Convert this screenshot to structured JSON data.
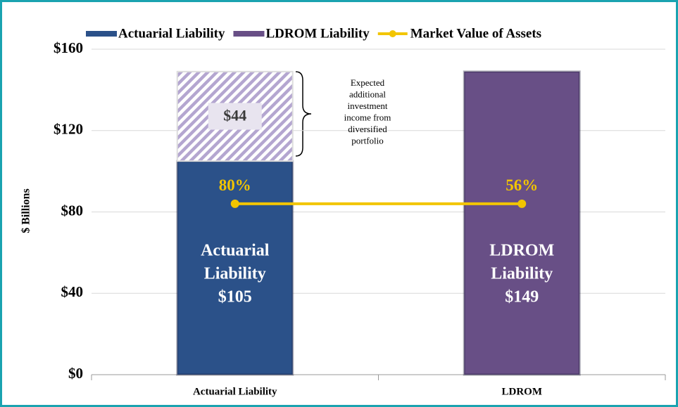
{
  "chart_data": {
    "type": "bar",
    "categories": [
      "Actuarial Liability",
      "LDROM"
    ],
    "y_label": "$ Billions",
    "ylim": [
      0,
      160
    ],
    "yticks": [
      {
        "value": 0,
        "label": "$0"
      },
      {
        "value": 40,
        "label": "$40"
      },
      {
        "value": 80,
        "label": "$80"
      },
      {
        "value": 120,
        "label": "$120"
      },
      {
        "value": 160,
        "label": "$160"
      }
    ],
    "grid": true,
    "legend": "top",
    "series": [
      {
        "name": "Actuarial Liability",
        "color": "#2b5189",
        "values": [
          105,
          null
        ]
      },
      {
        "name": "LDROM Liability",
        "color": "#684f86",
        "values": [
          null,
          149
        ]
      },
      {
        "name": "Market Value of Assets",
        "color": "#f2c500",
        "type": "line",
        "values": [
          84,
          84
        ]
      }
    ],
    "stacked_addition": {
      "color": "#b4a6d0",
      "values": [
        44,
        null
      ],
      "value_labels": [
        "$44",
        null
      ]
    },
    "bar_labels": [
      [
        "Actuarial",
        "Liability",
        "$105"
      ],
      [
        "LDROM",
        "Liability",
        "$149"
      ]
    ],
    "line_labels": [
      "80%",
      "56%"
    ],
    "annotation": [
      "Expected",
      "additional",
      "investment",
      "income from",
      "diversified",
      "portfolio"
    ]
  }
}
